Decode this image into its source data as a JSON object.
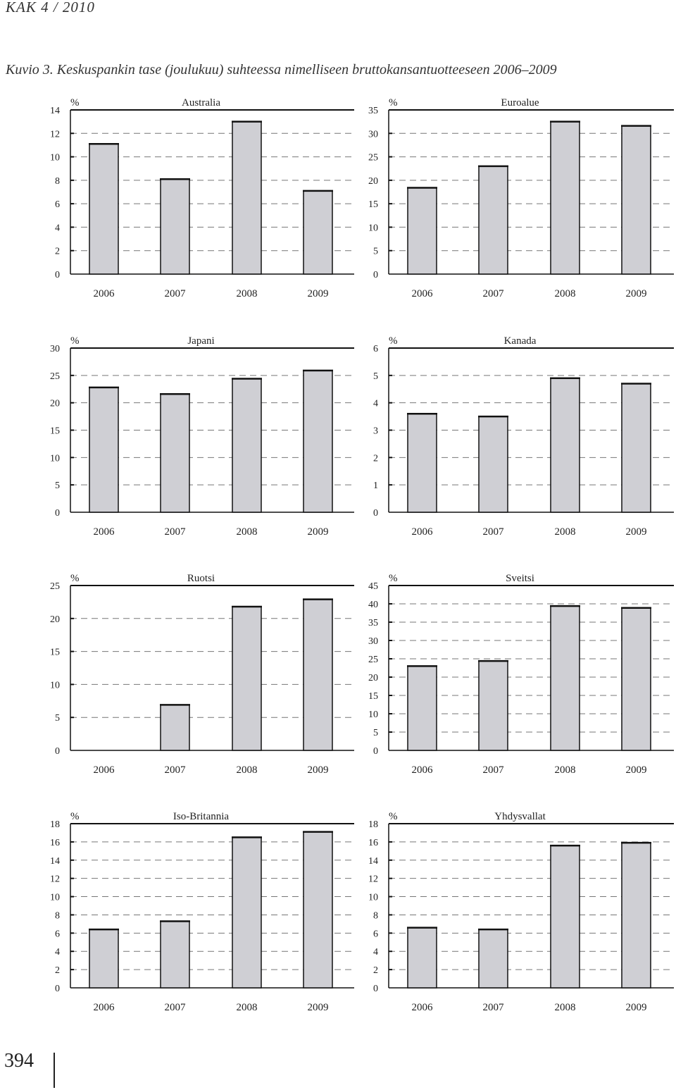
{
  "header": "KAK 4 / 2010",
  "caption": "Kuvio 3. Keskuspankin tase (joulukuu) suhteessa nimelliseen bruttokansantuotteeseen 2006–2009",
  "page_number": "394",
  "colors": {
    "bar_fill": "#cfcfd4",
    "bar_stroke": "#111111",
    "grid": "#777777",
    "axis": "#111111"
  },
  "chart_data": [
    {
      "type": "bar",
      "title": "Australia",
      "unit": "%",
      "categories": [
        "2006",
        "2007",
        "2008",
        "2009"
      ],
      "values": [
        11.1,
        8.1,
        13.0,
        7.1
      ],
      "ylim": [
        0,
        14
      ],
      "yticks": [
        0,
        2,
        4,
        6,
        8,
        10,
        12,
        14
      ],
      "grid": true,
      "legend": "none"
    },
    {
      "type": "bar",
      "title": "Euroalue",
      "unit": "%",
      "categories": [
        "2006",
        "2007",
        "2008",
        "2009"
      ],
      "values": [
        18.4,
        23.0,
        32.5,
        31.6
      ],
      "ylim": [
        0,
        35
      ],
      "yticks": [
        0,
        5,
        10,
        15,
        20,
        25,
        30,
        35
      ],
      "grid": true,
      "legend": "none"
    },
    {
      "type": "bar",
      "title": "Japani",
      "unit": "%",
      "categories": [
        "2006",
        "2007",
        "2008",
        "2009"
      ],
      "values": [
        22.8,
        21.6,
        24.4,
        25.9
      ],
      "ylim": [
        0,
        30
      ],
      "yticks": [
        0,
        5,
        10,
        15,
        20,
        25,
        30
      ],
      "grid": true,
      "legend": "none"
    },
    {
      "type": "bar",
      "title": "Kanada",
      "unit": "%",
      "categories": [
        "2006",
        "2007",
        "2008",
        "2009"
      ],
      "values": [
        3.6,
        3.5,
        4.9,
        4.7
      ],
      "ylim": [
        0,
        6
      ],
      "yticks": [
        0,
        1,
        2,
        3,
        4,
        5,
        6
      ],
      "grid": true,
      "legend": "none"
    },
    {
      "type": "bar",
      "title": "Ruotsi",
      "unit": "%",
      "categories": [
        "2006",
        "2007",
        "2008",
        "2009"
      ],
      "values": [
        0,
        6.9,
        21.8,
        22.9
      ],
      "ylim": [
        0,
        25
      ],
      "yticks": [
        0,
        5,
        10,
        15,
        20,
        25
      ],
      "grid": true,
      "legend": "none"
    },
    {
      "type": "bar",
      "title": "Sveitsi",
      "unit": "%",
      "categories": [
        "2006",
        "2007",
        "2008",
        "2009"
      ],
      "values": [
        23.0,
        24.4,
        39.4,
        38.9
      ],
      "ylim": [
        0,
        45
      ],
      "yticks": [
        0,
        5,
        10,
        15,
        20,
        25,
        30,
        35,
        40,
        45
      ],
      "grid": true,
      "legend": "none"
    },
    {
      "type": "bar",
      "title": "Iso-Britannia",
      "unit": "%",
      "categories": [
        "2006",
        "2007",
        "2008",
        "2009"
      ],
      "values": [
        6.4,
        7.3,
        16.5,
        17.1
      ],
      "ylim": [
        0,
        18
      ],
      "yticks": [
        0,
        2,
        4,
        6,
        8,
        10,
        12,
        14,
        16,
        18
      ],
      "grid": true,
      "legend": "none"
    },
    {
      "type": "bar",
      "title": "Yhdysvallat",
      "unit": "%",
      "categories": [
        "2006",
        "2007",
        "2008",
        "2009"
      ],
      "values": [
        6.6,
        6.4,
        15.6,
        15.9
      ],
      "ylim": [
        0,
        18
      ],
      "yticks": [
        0,
        2,
        4,
        6,
        8,
        10,
        12,
        14,
        16,
        18
      ],
      "grid": true,
      "legend": "none"
    }
  ]
}
